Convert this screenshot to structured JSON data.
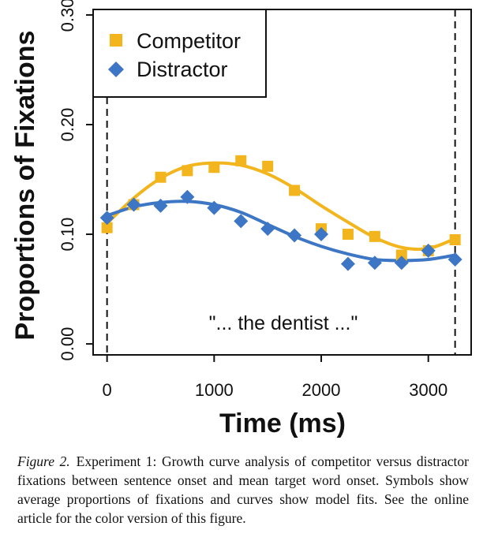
{
  "chart_data": {
    "type": "line",
    "xlabel": "Time (ms)",
    "ylabel": "Proportions of Fixations",
    "xlim": [
      -130,
      3400
    ],
    "ylim": [
      -0.01,
      0.305
    ],
    "x_ticks": [
      0,
      1000,
      2000,
      3000
    ],
    "x_tick_labels": [
      "0",
      "1000",
      "2000",
      "3000"
    ],
    "y_ticks": [
      0.0,
      0.1,
      0.2,
      0.3
    ],
    "y_tick_labels": [
      "0.00",
      "0.10",
      "0.20",
      "0.30"
    ],
    "vertical_lines": [
      0,
      3250
    ],
    "legend_position": "top-left",
    "annotation": "\"... the dentist ...\"",
    "series": [
      {
        "name": "Competitor",
        "color": "#F2B51E",
        "marker": "square",
        "points": [
          {
            "x": 0,
            "y": 0.106
          },
          {
            "x": 250,
            "y": 0.127
          },
          {
            "x": 500,
            "y": 0.152
          },
          {
            "x": 750,
            "y": 0.158
          },
          {
            "x": 1000,
            "y": 0.161
          },
          {
            "x": 1250,
            "y": 0.167
          },
          {
            "x": 1500,
            "y": 0.162
          },
          {
            "x": 1750,
            "y": 0.14
          },
          {
            "x": 2000,
            "y": 0.105
          },
          {
            "x": 2250,
            "y": 0.1
          },
          {
            "x": 2500,
            "y": 0.098
          },
          {
            "x": 2750,
            "y": 0.081
          },
          {
            "x": 3000,
            "y": 0.085
          },
          {
            "x": 3250,
            "y": 0.095
          }
        ],
        "fit": [
          {
            "x": 0,
            "y": 0.11
          },
          {
            "x": 250,
            "y": 0.133
          },
          {
            "x": 500,
            "y": 0.151
          },
          {
            "x": 750,
            "y": 0.162
          },
          {
            "x": 1000,
            "y": 0.165
          },
          {
            "x": 1250,
            "y": 0.163
          },
          {
            "x": 1500,
            "y": 0.155
          },
          {
            "x": 1750,
            "y": 0.142
          },
          {
            "x": 2000,
            "y": 0.126
          },
          {
            "x": 2250,
            "y": 0.111
          },
          {
            "x": 2500,
            "y": 0.097
          },
          {
            "x": 2750,
            "y": 0.088
          },
          {
            "x": 3000,
            "y": 0.087
          },
          {
            "x": 3250,
            "y": 0.096
          }
        ]
      },
      {
        "name": "Distractor",
        "color": "#3C76C4",
        "marker": "diamond",
        "points": [
          {
            "x": 0,
            "y": 0.115
          },
          {
            "x": 250,
            "y": 0.127
          },
          {
            "x": 500,
            "y": 0.126
          },
          {
            "x": 750,
            "y": 0.134
          },
          {
            "x": 1000,
            "y": 0.124
          },
          {
            "x": 1250,
            "y": 0.112
          },
          {
            "x": 1500,
            "y": 0.105
          },
          {
            "x": 1750,
            "y": 0.099
          },
          {
            "x": 2000,
            "y": 0.1
          },
          {
            "x": 2250,
            "y": 0.073
          },
          {
            "x": 2500,
            "y": 0.074
          },
          {
            "x": 2750,
            "y": 0.074
          },
          {
            "x": 3000,
            "y": 0.085
          },
          {
            "x": 3250,
            "y": 0.077
          }
        ],
        "fit": [
          {
            "x": 0,
            "y": 0.117
          },
          {
            "x": 250,
            "y": 0.125
          },
          {
            "x": 500,
            "y": 0.129
          },
          {
            "x": 750,
            "y": 0.13
          },
          {
            "x": 1000,
            "y": 0.127
          },
          {
            "x": 1250,
            "y": 0.12
          },
          {
            "x": 1500,
            "y": 0.109
          },
          {
            "x": 1750,
            "y": 0.098
          },
          {
            "x": 2000,
            "y": 0.089
          },
          {
            "x": 2250,
            "y": 0.082
          },
          {
            "x": 2500,
            "y": 0.077
          },
          {
            "x": 2750,
            "y": 0.076
          },
          {
            "x": 3000,
            "y": 0.077
          },
          {
            "x": 3250,
            "y": 0.081
          }
        ]
      }
    ]
  },
  "caption": {
    "label": "Figure 2.",
    "text": "Experiment 1: Growth curve analysis of competitor versus distractor fixations between sentence onset and mean target word onset. Symbols show average proportions of fixations and curves show model fits. See the online article for the color version of this figure."
  }
}
